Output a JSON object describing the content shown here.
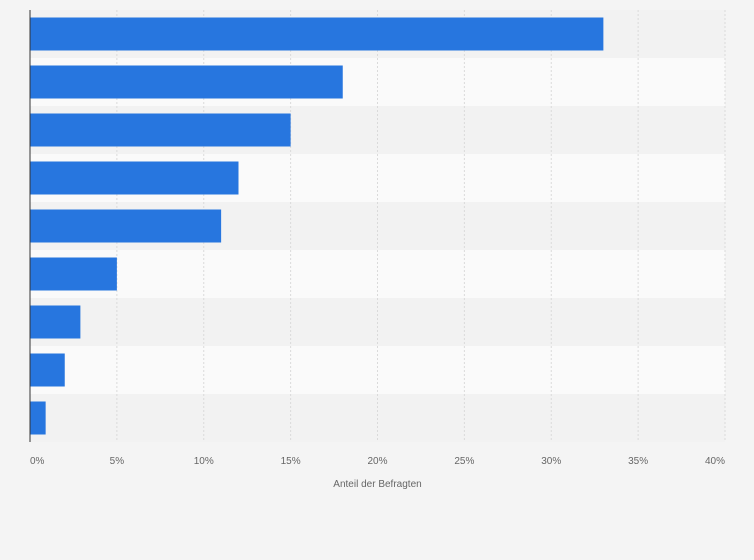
{
  "chart_data": {
    "type": "bar",
    "orientation": "horizontal",
    "categories": [
      "",
      "",
      "",
      "",
      "",
      "",
      "",
      "",
      ""
    ],
    "values": [
      33,
      18,
      15,
      12,
      11,
      5,
      2.9,
      2,
      0.9
    ],
    "xlim": [
      0,
      40
    ],
    "xticks": [
      "0%",
      "5%",
      "10%",
      "15%",
      "20%",
      "25%",
      "30%",
      "35%",
      "40%"
    ],
    "xlabel": "Anteil der Befragten",
    "ylabel": "",
    "title": "",
    "grid": true,
    "colors": {
      "bar": "#2776df",
      "band_light": "#fafafa",
      "band_dark": "#f2f2f2",
      "gridline": "#dadada",
      "axis": "#333333",
      "text": "#666666",
      "background": "#f4f4f4"
    }
  }
}
